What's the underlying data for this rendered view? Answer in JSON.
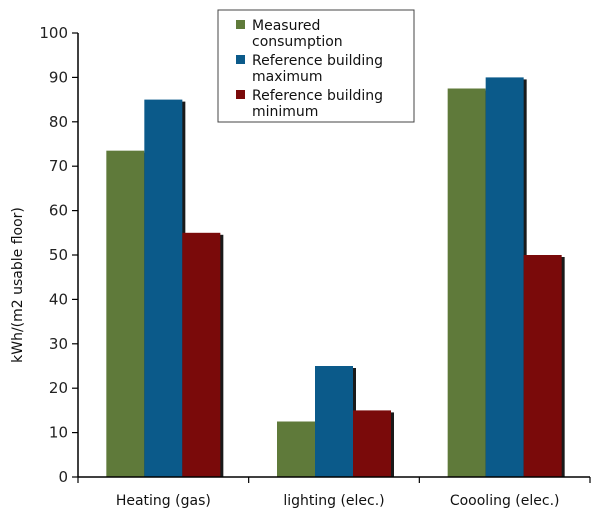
{
  "chart_data": {
    "type": "bar",
    "title": "",
    "xlabel": "",
    "ylabel": "kWh/(m2 usable floor)",
    "ylim": [
      0,
      100
    ],
    "yticks": [
      0,
      10,
      20,
      30,
      40,
      50,
      60,
      70,
      80,
      90,
      100
    ],
    "categories": [
      "Heating (gas)",
      "lighting (elec.)",
      "Coooling (elec.)"
    ],
    "series": [
      {
        "name_lines": [
          "Measured",
          "consumption"
        ],
        "color": "#5f7a3a",
        "values": [
          73.5,
          12.5,
          87.5
        ]
      },
      {
        "name_lines": [
          "Reference building",
          "maximum"
        ],
        "color": "#0b5a8a",
        "values": [
          85,
          25,
          90
        ]
      },
      {
        "name_lines": [
          "Reference building",
          "minimum"
        ],
        "color": "#7a0a0a",
        "values": [
          55,
          15,
          50
        ]
      }
    ],
    "grid": false,
    "legend_position": "top-center"
  }
}
